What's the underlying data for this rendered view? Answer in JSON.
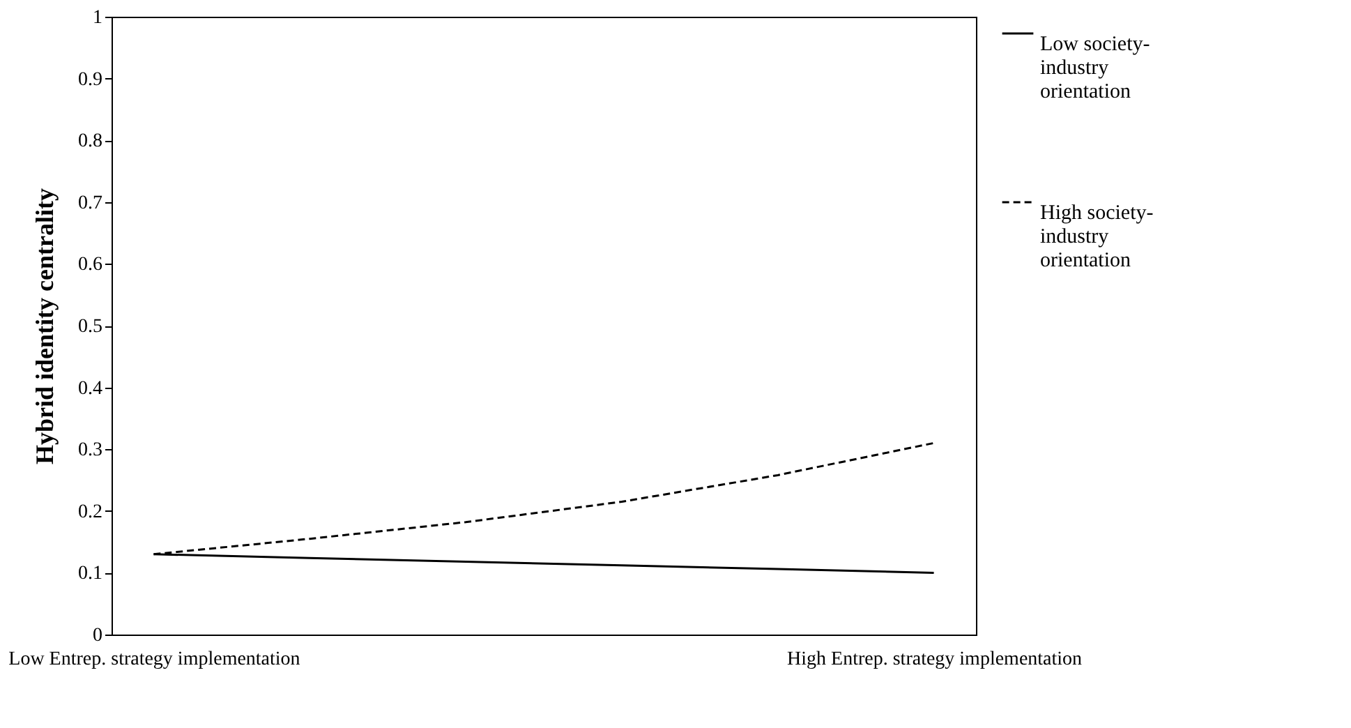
{
  "chart_data": {
    "type": "line",
    "ylabel": "Hybrid identity centrality",
    "categories": [
      "Low Entrep. strategy implementation",
      null,
      null,
      null,
      null,
      "High Entrep. strategy implementation"
    ],
    "series": [
      {
        "name": "Low society-industry orientation",
        "color": "#000000",
        "line_style": "solid",
        "values": [
          0.13,
          0.124,
          0.118,
          0.112,
          0.106,
          0.1
        ]
      },
      {
        "name": "High society-industry orientation",
        "color": "#000000",
        "line_style": "dashed",
        "values": [
          0.13,
          0.155,
          0.182,
          0.215,
          0.258,
          0.31
        ]
      }
    ],
    "ylim": [
      0,
      1
    ],
    "yticks": [
      0,
      0.1,
      0.2,
      0.3,
      0.4,
      0.5,
      0.6,
      0.7,
      0.8,
      0.9,
      1
    ],
    "grid": false,
    "legend": "right",
    "marker": "none"
  }
}
